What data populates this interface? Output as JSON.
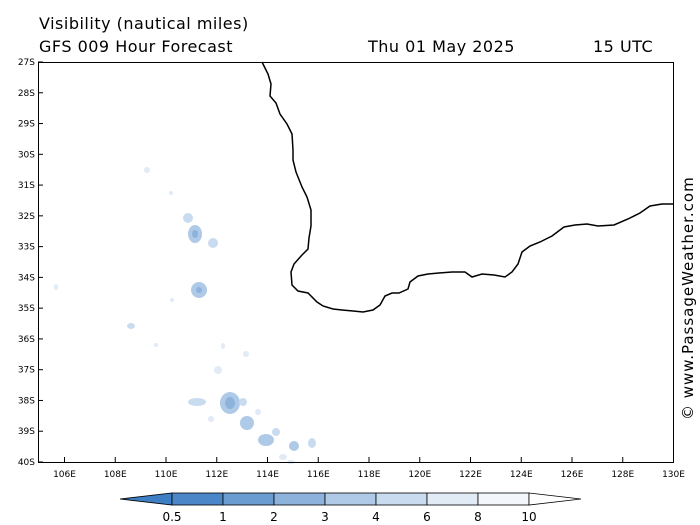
{
  "header": {
    "title": "Visibility (nautical miles)",
    "subtitle": "GFS 009 Hour Forecast",
    "date": "Thu 01 May 2025",
    "time": "15 UTC"
  },
  "credit": "© www.PassageWeather.com",
  "map": {
    "lat_labels": [
      "27S",
      "28S",
      "29S",
      "30S",
      "31S",
      "32S",
      "33S",
      "34S",
      "35S",
      "36S",
      "37S",
      "38S",
      "39S",
      "40S"
    ],
    "lon_labels": [
      "106E",
      "108E",
      "110E",
      "112E",
      "114E",
      "116E",
      "118E",
      "120E",
      "122E",
      "124E",
      "126E",
      "128E",
      "130E"
    ]
  },
  "legend": {
    "labels": [
      "0.5",
      "1",
      "2",
      "3",
      "4",
      "6",
      "8",
      "10"
    ],
    "colors": [
      "#3d7ec4",
      "#4a86c8",
      "#6a9bd1",
      "#8db3dd",
      "#aecae7",
      "#c9dcef",
      "#e1ebf6",
      "#f3f7fc",
      "#ffffff"
    ]
  }
}
